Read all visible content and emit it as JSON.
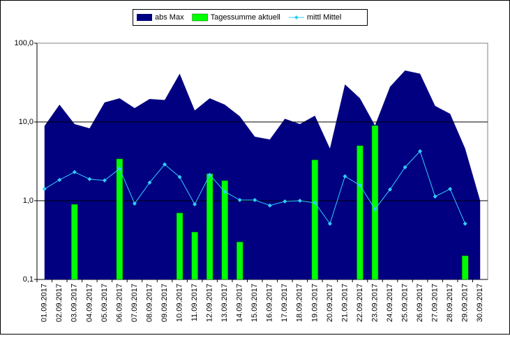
{
  "chart_data": {
    "type": "combo",
    "yscale": "log",
    "grid": true,
    "legend": "top",
    "categories": [
      "01.09.2017",
      "02.09.2017",
      "03.09.2017",
      "04.09.2017",
      "05.09.2017",
      "06.09.2017",
      "07.09.2017",
      "08.09.2017",
      "09.09.2017",
      "10.09.2017",
      "11.09.2017",
      "12.09.2017",
      "13.09.2017",
      "14.09.2017",
      "15.09.2017",
      "16.09.2017",
      "17.09.2017",
      "18.09.2017",
      "19.09.2017",
      "20.09.2017",
      "21.09.2017",
      "22.09.2017",
      "23.09.2017",
      "24.09.2017",
      "25.09.2017",
      "26.09.2017",
      "27.09.2017",
      "28.09.2017",
      "29.09.2017",
      "30.09.2017"
    ],
    "ylim": [
      0.1,
      100
    ],
    "yticks": [
      {
        "value": 0.1,
        "label": "0,1"
      },
      {
        "value": 1,
        "label": "1,0"
      },
      {
        "value": 10,
        "label": "10,0"
      },
      {
        "value": 100,
        "label": "100,0"
      }
    ],
    "series": [
      {
        "name": "abs Max",
        "kind": "area",
        "color": "#000080",
        "values": [
          8.9,
          16.6,
          9.4,
          8.3,
          17.7,
          20,
          15,
          19.6,
          19,
          41,
          14,
          20,
          16.6,
          11.8,
          6.5,
          6.0,
          11,
          9.4,
          12,
          4.6,
          30,
          20,
          9,
          28,
          45,
          41,
          16,
          12.7,
          4.6,
          1.0
        ]
      },
      {
        "name": "Tagessumme aktuell",
        "kind": "bar",
        "color": "#00ff00",
        "values": [
          null,
          null,
          0.9,
          null,
          null,
          3.4,
          null,
          null,
          null,
          0.7,
          0.4,
          2.2,
          1.8,
          0.3,
          null,
          null,
          null,
          null,
          3.3,
          null,
          null,
          5.0,
          9.0,
          null,
          null,
          null,
          null,
          null,
          0.2,
          null
        ]
      },
      {
        "name": "mittl Mittel",
        "kind": "line",
        "color": "#33ccff",
        "values": [
          1.41,
          1.84,
          2.31,
          1.88,
          1.81,
          2.55,
          0.92,
          1.7,
          2.89,
          2.0,
          0.9,
          2.13,
          1.3,
          1.02,
          1.02,
          0.87,
          0.98,
          1.0,
          0.94,
          0.51,
          2.04,
          1.57,
          0.78,
          1.39,
          2.66,
          4.25,
          1.13,
          1.41,
          0.51,
          null
        ]
      }
    ]
  }
}
